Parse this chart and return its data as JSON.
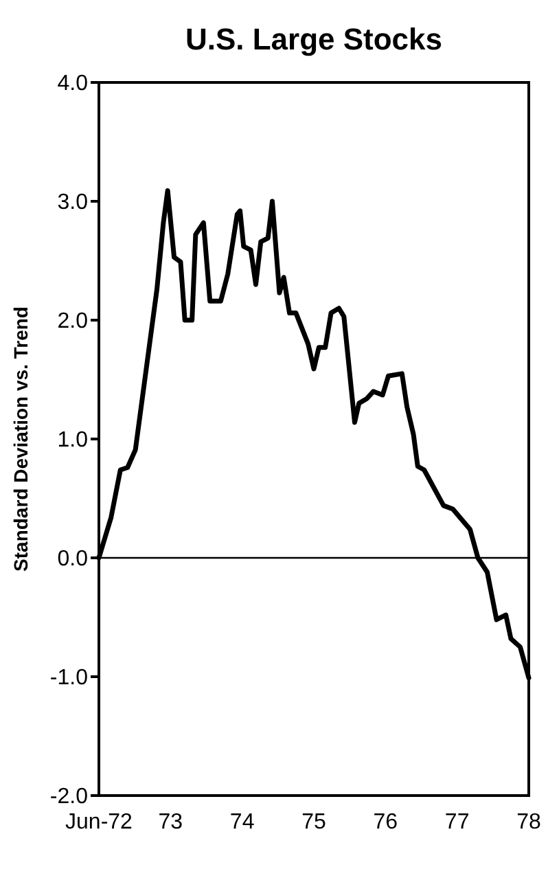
{
  "chart_data": {
    "type": "line",
    "title": "U.S. Large Stocks",
    "ylabel": "Standard Deviation vs. Trend",
    "xlim": [
      72,
      78
    ],
    "xticks": [
      {
        "value": 72,
        "label": "Jun-72"
      },
      {
        "value": 73,
        "label": "73"
      },
      {
        "value": 74,
        "label": "74"
      },
      {
        "value": 75,
        "label": "75"
      },
      {
        "value": 76,
        "label": "76"
      },
      {
        "value": 77,
        "label": "77"
      },
      {
        "value": 78,
        "label": "78"
      }
    ],
    "ylim": [
      -2,
      4
    ],
    "yticks": [
      {
        "value": 4,
        "label": "4.0"
      },
      {
        "value": 3,
        "label": "3.0"
      },
      {
        "value": 2,
        "label": "2.0"
      },
      {
        "value": 1,
        "label": "1.0"
      },
      {
        "value": 0,
        "label": "0.0"
      },
      {
        "value": -1,
        "label": "-1.0"
      },
      {
        "value": -2,
        "label": "-2.0"
      }
    ],
    "grid": false,
    "marker": "none",
    "line_style": "solid",
    "ref_lines": [
      {
        "axis": "y",
        "value": 0,
        "color": "#000000"
      }
    ],
    "series": [
      {
        "color": "#000000",
        "x": [
          72.0,
          72.17,
          72.3,
          72.4,
          72.51,
          72.81,
          72.9,
          72.96,
          73.05,
          73.14,
          73.2,
          73.3,
          73.35,
          73.46,
          73.55,
          73.7,
          73.8,
          73.93,
          73.97,
          74.02,
          74.12,
          74.19,
          74.26,
          74.36,
          74.42,
          74.52,
          74.58,
          74.66,
          74.75,
          74.92,
          75.0,
          75.07,
          75.16,
          75.24,
          75.35,
          75.42,
          75.57,
          75.63,
          75.74,
          75.83,
          75.96,
          76.04,
          76.23,
          76.3,
          76.39,
          76.45,
          76.54,
          76.81,
          76.94,
          77.18,
          77.29,
          77.42,
          77.55,
          77.68,
          77.75,
          77.88,
          78.0
        ],
        "values": [
          0.0,
          0.34,
          0.74,
          0.76,
          0.91,
          2.26,
          2.82,
          3.09,
          2.53,
          2.49,
          2.0,
          2.0,
          2.72,
          2.82,
          2.16,
          2.16,
          2.39,
          2.89,
          2.92,
          2.62,
          2.59,
          2.3,
          2.66,
          2.69,
          3.0,
          2.23,
          2.36,
          2.06,
          2.06,
          1.8,
          1.59,
          1.77,
          1.77,
          2.06,
          2.1,
          2.03,
          1.14,
          1.3,
          1.34,
          1.4,
          1.37,
          1.53,
          1.55,
          1.27,
          1.04,
          0.77,
          0.74,
          0.44,
          0.41,
          0.24,
          0.0,
          -0.12,
          -0.52,
          -0.48,
          -0.68,
          -0.75,
          -1.01
        ]
      }
    ]
  }
}
